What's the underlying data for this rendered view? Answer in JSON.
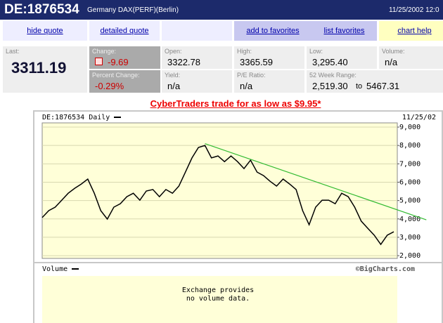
{
  "header": {
    "symbol": "DE:1876534",
    "name": "Germany DAX(PERF)(Berlin)",
    "datetime": "11/25/2002 12:0"
  },
  "nav": {
    "hide_quote": "hide quote",
    "detailed_quote": "detailed quote",
    "add_favorites": "add to favorites",
    "list_favorites": "list favorites",
    "chart_help": "chart help"
  },
  "quote": {
    "last": {
      "label": "Last:",
      "value": "3311.19"
    },
    "change": {
      "label": "Change:",
      "value": "-9.69"
    },
    "percent_change": {
      "label": "Percent Change:",
      "value": "-0.29%"
    },
    "open": {
      "label": "Open:",
      "value": "3322.78"
    },
    "yield": {
      "label": "Yield:",
      "value": "n/a"
    },
    "high": {
      "label": "High:",
      "value": "3365.59"
    },
    "pe_ratio": {
      "label": "P/E Ratio:",
      "value": "n/a"
    },
    "low": {
      "label": "Low:",
      "value": "3,295.40"
    },
    "range": {
      "label": "52 Week Range:",
      "low": "2,519.30",
      "separator": "to",
      "high": "5467.31"
    },
    "volume": {
      "label": "Volume:",
      "value": "n/a"
    }
  },
  "promo": "CyberTraders trade for as low as $9.95*",
  "chart_data": {
    "type": "line",
    "title": "DE:1876534 Daily",
    "date": "11/25/02",
    "categories": [
      null,
      null,
      null,
      null,
      null,
      null,
      null,
      null,
      null,
      null,
      null,
      null,
      null,
      null,
      null,
      null,
      null,
      null,
      null,
      null,
      null,
      null,
      null,
      null,
      null,
      null,
      null,
      null,
      null,
      null,
      null,
      null,
      null,
      null,
      null,
      null,
      null,
      null,
      null,
      null,
      null,
      null,
      null,
      null,
      null,
      null,
      null,
      null,
      null,
      null,
      null,
      null,
      null,
      null,
      null
    ],
    "values": [
      4070,
      4450,
      4640,
      5020,
      5400,
      5670,
      5900,
      6170,
      5400,
      4450,
      3990,
      4640,
      4830,
      5210,
      5400,
      5020,
      5520,
      5600,
      5210,
      5600,
      5400,
      5790,
      6550,
      7320,
      7890,
      8000,
      7320,
      7430,
      7120,
      7430,
      7120,
      6740,
      7200,
      6550,
      6360,
      6050,
      5790,
      6170,
      5900,
      5600,
      4450,
      3680,
      4640,
      5020,
      5020,
      4830,
      5400,
      5210,
      4640,
      3880,
      3490,
      3110,
      2610,
      3110,
      3300
    ],
    "color": "#000000",
    "trendline": {
      "x": [
        25,
        59
      ],
      "values": [
        8100,
        3950
      ],
      "color": "#33bb33"
    },
    "ylim": [
      1850,
      9230
    ],
    "yticks": [
      {
        "value": 2000,
        "label": "2,000"
      },
      {
        "value": 3000,
        "label": "3,000"
      },
      {
        "value": 4000,
        "label": "4,000"
      },
      {
        "value": 5000,
        "label": "5,000"
      },
      {
        "value": 6000,
        "label": "6,000"
      },
      {
        "value": 7000,
        "label": "7,000"
      },
      {
        "value": 8000,
        "label": "8,000"
      },
      {
        "value": 9000,
        "label": "9,000"
      }
    ],
    "grid": true,
    "volume_title": "Volume",
    "credit": "©BigCharts.com",
    "volume_note": [
      "Exchange provides",
      "no volume data."
    ]
  }
}
